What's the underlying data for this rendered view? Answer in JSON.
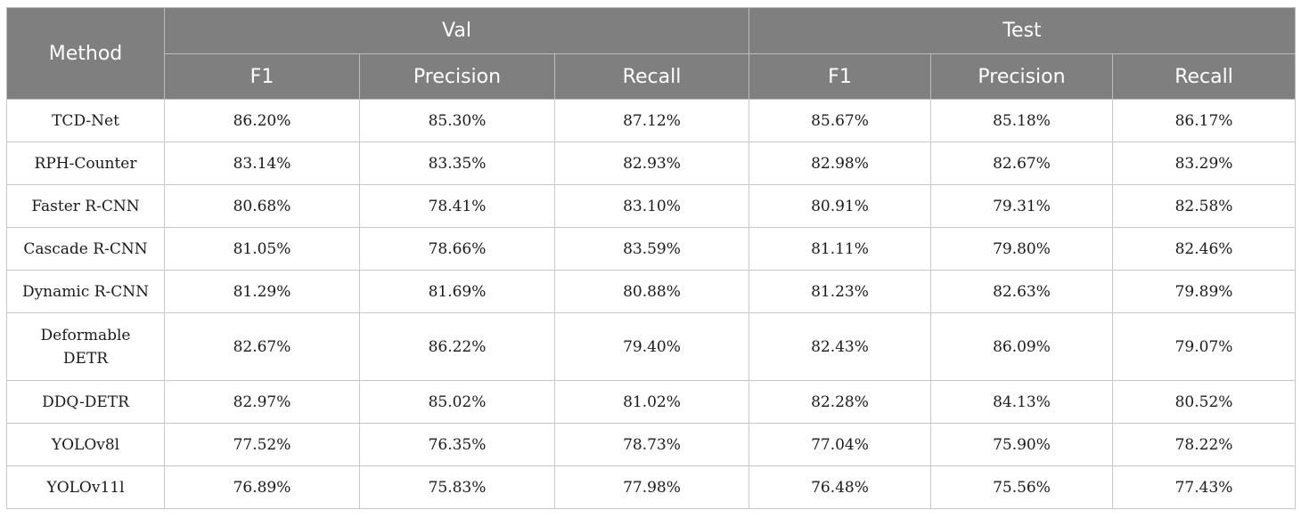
{
  "table": {
    "header_method": "Method",
    "group_val": "Val",
    "group_test": "Test",
    "subheaders": [
      "F1",
      "Precision",
      "Recall",
      "F1",
      "Precision",
      "Recall"
    ],
    "rows": [
      {
        "method": "TCD-Net",
        "cells": [
          "86.20%",
          "85.30%",
          "87.12%",
          "85.67%",
          "85.18%",
          "86.17%"
        ]
      },
      {
        "method": "RPH-Counter",
        "cells": [
          "83.14%",
          "83.35%",
          "82.93%",
          "82.98%",
          "82.67%",
          "83.29%"
        ]
      },
      {
        "method": "Faster R-CNN",
        "cells": [
          "80.68%",
          "78.41%",
          "83.10%",
          "80.91%",
          "79.31%",
          "82.58%"
        ]
      },
      {
        "method": "Cascade R-CNN",
        "cells": [
          "81.05%",
          "78.66%",
          "83.59%",
          "81.11%",
          "79.80%",
          "82.46%"
        ]
      },
      {
        "method": "Dynamic R-CNN",
        "cells": [
          "81.29%",
          "81.69%",
          "80.88%",
          "81.23%",
          "82.63%",
          "79.89%"
        ]
      },
      {
        "method": "Deformable DETR",
        "cells": [
          "82.67%",
          "86.22%",
          "79.40%",
          "82.43%",
          "86.09%",
          "79.07%"
        ]
      },
      {
        "method": "DDQ-DETR",
        "cells": [
          "82.97%",
          "85.02%",
          "81.02%",
          "82.28%",
          "84.13%",
          "80.52%"
        ]
      },
      {
        "method": "YOLOv8l",
        "cells": [
          "77.52%",
          "76.35%",
          "78.73%",
          "77.04%",
          "75.90%",
          "78.22%"
        ]
      },
      {
        "method": "YOLOv11l",
        "cells": [
          "76.89%",
          "75.83%",
          "77.98%",
          "76.48%",
          "75.56%",
          "77.43%"
        ]
      }
    ]
  }
}
